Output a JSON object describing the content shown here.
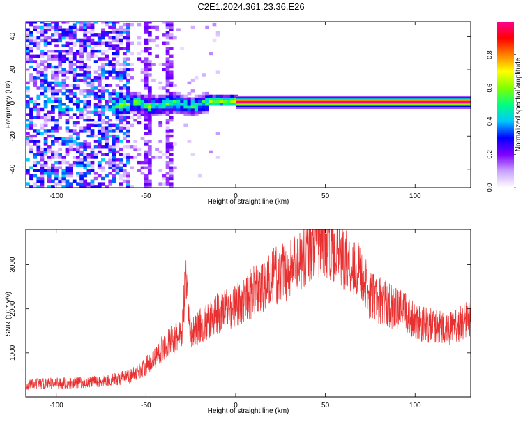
{
  "title": "C2E1.2024.361.23.36.E26",
  "chart_data": [
    {
      "type": "heatmap",
      "title": "C2E1.2024.361.23.36.E26",
      "xlabel": "Height of straight line (km)",
      "ylabel": "Frequency (Hz)",
      "xlim": [
        -117,
        131
      ],
      "ylim": [
        -51,
        49
      ],
      "xticks": [
        -100,
        -50,
        0,
        50,
        100
      ],
      "yticks": [
        -40,
        -20,
        0,
        20,
        40
      ],
      "colorbar": {
        "label": "Normalized spectral amplitude",
        "range": [
          0,
          1
        ],
        "ticks": [
          "0.0",
          "0.2",
          "0.4",
          "0.6",
          "0.8"
        ],
        "colors": [
          "#ffffff",
          "#c8a2ff",
          "#8000ff",
          "#0000ff",
          "#00c8ff",
          "#00ff80",
          "#80ff00",
          "#ffff00",
          "#ff8000",
          "#ff0000",
          "#ff0090"
        ]
      },
      "features": [
        {
          "description": "broadband noise",
          "x_range": [
            -117,
            -60
          ],
          "freq_range": [
            -51,
            49
          ],
          "amplitude": 0.15
        },
        {
          "description": "sparse noise",
          "x_range": [
            -60,
            -35
          ],
          "freq_range": [
            -51,
            49
          ],
          "amplitude": 0.05
        },
        {
          "description": "emerging carrier",
          "x_range": [
            -70,
            -15
          ],
          "freq_center": -1.5,
          "amplitude": 0.5
        },
        {
          "description": "stable carrier",
          "x_range": [
            0,
            131
          ],
          "freq_center": 0.5,
          "amplitude": 1.0
        }
      ]
    },
    {
      "type": "line",
      "xlabel": "Height of straight line (km)",
      "ylabel": "SNR (10 * v/v)",
      "xlim": [
        -117,
        131
      ],
      "ylim": [
        0,
        3800
      ],
      "xticks": [
        -100,
        -50,
        0,
        50,
        100
      ],
      "yticks": [
        1000,
        2000,
        3000
      ],
      "color": "#e83030",
      "series": [
        {
          "x": [
            -117,
            -110,
            -100,
            -90,
            -80,
            -70,
            -60,
            -55,
            -50,
            -45,
            -40,
            -35,
            -30,
            -28,
            -25,
            -20,
            -15,
            -10,
            -5,
            0,
            5,
            10,
            15,
            20,
            25,
            30,
            35,
            40,
            45,
            50,
            55,
            60,
            65,
            70,
            75,
            80,
            85,
            90,
            95,
            100,
            105,
            110,
            115,
            120,
            125,
            131
          ],
          "y": [
            280,
            300,
            310,
            320,
            340,
            380,
            450,
            550,
            700,
            900,
            1150,
            1300,
            1400,
            2600,
            1450,
            1600,
            1700,
            1900,
            2000,
            2050,
            2200,
            2400,
            2500,
            2700,
            2800,
            2900,
            3100,
            3350,
            3500,
            3550,
            3400,
            3200,
            3000,
            2800,
            2300,
            2200,
            2100,
            2000,
            1900,
            1750,
            1650,
            1600,
            1550,
            1550,
            1650,
            1800
          ]
        }
      ]
    }
  ]
}
